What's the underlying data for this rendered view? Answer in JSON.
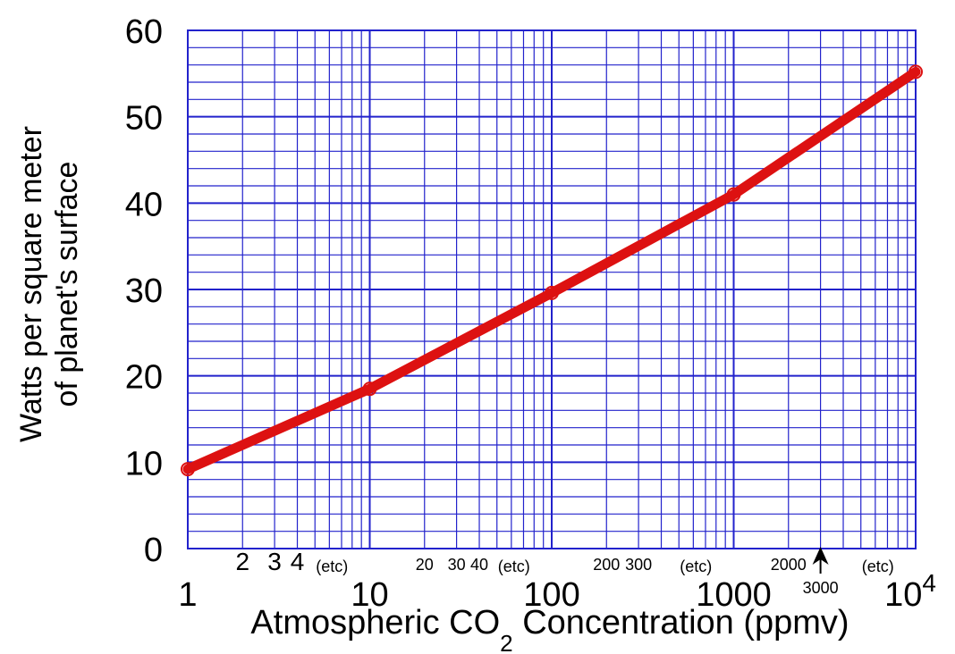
{
  "chart_data": {
    "type": "line",
    "xscale": "log",
    "xlim": [
      1,
      10000
    ],
    "ylim": [
      0,
      60
    ],
    "grid": true,
    "ylabel_line1": "Watts per square meter",
    "ylabel_line2": "of planet's surface",
    "xlabel_part1": "Atmospheric CO",
    "xlabel_sub": "2",
    "xlabel_part2": " Concentration (ppmv)",
    "y_tick_labels": [
      "0",
      "10",
      "20",
      "30",
      "40",
      "50",
      "60"
    ],
    "y_tick_values": [
      0,
      10,
      20,
      30,
      40,
      50,
      60
    ],
    "x_major_labels": [
      "1",
      "10",
      "100",
      "1000"
    ],
    "x_major_values": [
      1,
      10,
      100,
      1000
    ],
    "x_top_label_base": "10",
    "x_top_label_exp": "4",
    "x_top_label_value": 10000,
    "minor_annotations": [
      {
        "text": "2",
        "x": 2
      },
      {
        "text": "3",
        "x": 3
      },
      {
        "text": "4",
        "x": 4
      },
      {
        "text": "(etc)",
        "x": 6.2
      },
      {
        "text": "20",
        "x": 20
      },
      {
        "text": "30",
        "x": 30
      },
      {
        "text": "40",
        "x": 40
      },
      {
        "text": "(etc)",
        "x": 62
      },
      {
        "text": "200",
        "x": 200
      },
      {
        "text": "300",
        "x": 300
      },
      {
        "text": "(etc)",
        "x": 620
      },
      {
        "text": "2000",
        "x": 2000
      },
      {
        "text": "(etc)",
        "x": 6200
      }
    ],
    "arrow_label": "3000",
    "arrow_x": 3000,
    "series": [
      {
        "color": "#dd1111",
        "x": [
          1,
          10,
          100,
          1000,
          10000
        ],
        "y": [
          9.2,
          18.5,
          29.6,
          41.0,
          55.2
        ]
      }
    ],
    "colors": {
      "grid": "#2222cc",
      "line": "#dd1111",
      "text": "#000000"
    }
  }
}
